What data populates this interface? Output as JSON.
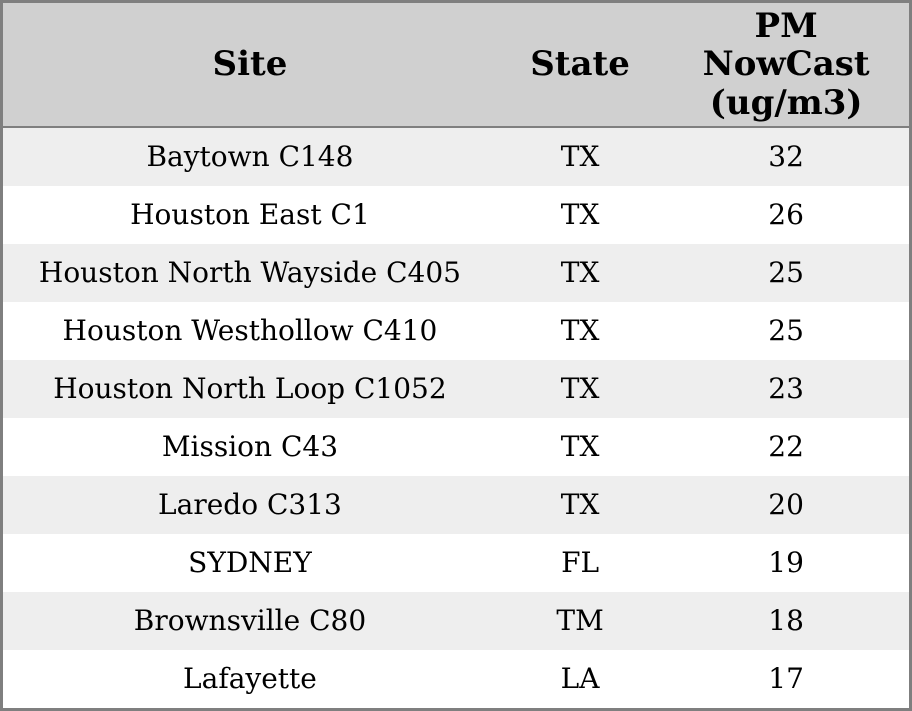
{
  "colors": {
    "header_bg": "#d0d0d0",
    "row_alt_bg": "#eeeeee",
    "row_bg": "#ffffff",
    "border": "#7f7f7f",
    "text": "#000000"
  },
  "chart_data": {
    "type": "table",
    "title": "",
    "legend": "none",
    "grid": "alternating-row-shading",
    "columns": [
      "Site",
      "State",
      "PM NowCast (ug/m3)"
    ],
    "rows": [
      {
        "site": "Baytown C148",
        "state": "TX",
        "pm_nowcast": 32
      },
      {
        "site": "Houston East C1",
        "state": "TX",
        "pm_nowcast": 26
      },
      {
        "site": "Houston North Wayside C405",
        "state": "TX",
        "pm_nowcast": 25
      },
      {
        "site": "Houston Westhollow C410",
        "state": "TX",
        "pm_nowcast": 25
      },
      {
        "site": "Houston North Loop C1052",
        "state": "TX",
        "pm_nowcast": 23
      },
      {
        "site": "Mission C43",
        "state": "TX",
        "pm_nowcast": 22
      },
      {
        "site": "Laredo C313",
        "state": "TX",
        "pm_nowcast": 20
      },
      {
        "site": "SYDNEY",
        "state": "FL",
        "pm_nowcast": 19
      },
      {
        "site": "Brownsville C80",
        "state": "TM",
        "pm_nowcast": 18
      },
      {
        "site": "Lafayette",
        "state": "LA",
        "pm_nowcast": 17
      }
    ]
  }
}
